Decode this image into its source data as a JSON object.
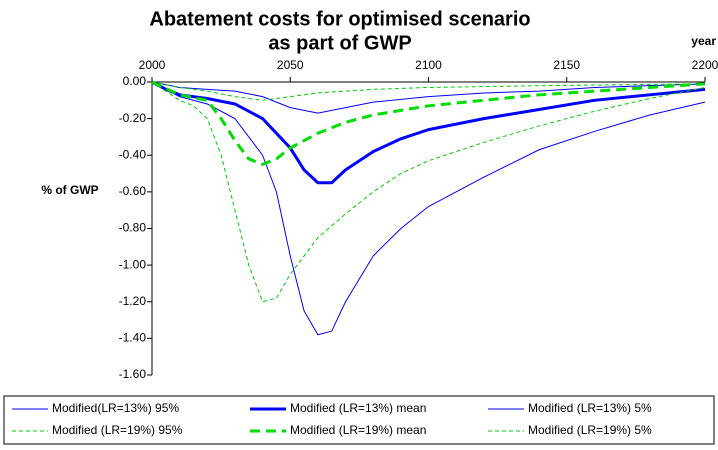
{
  "chart_data": {
    "type": "line",
    "title": [
      "Abatement costs for optimised scenario",
      "as part of GWP"
    ],
    "x_label": "year",
    "y_label": "% of GWP",
    "xlim": [
      2000,
      2200
    ],
    "xticks": [
      2000,
      2050,
      2100,
      2150,
      2200
    ],
    "ylim": [
      -1.6,
      0
    ],
    "yticks": [
      {
        "value": 0,
        "label": "0.00"
      },
      {
        "value": -0.2,
        "label": "-0.20"
      },
      {
        "value": -0.4,
        "label": "-0.40"
      },
      {
        "value": -0.6,
        "label": "-0.60"
      },
      {
        "value": -0.8,
        "label": "-0.80"
      },
      {
        "value": -1.0,
        "label": "-1.00"
      },
      {
        "value": -1.2,
        "label": "-1.20"
      },
      {
        "value": -1.4,
        "label": "-1.40"
      },
      {
        "value": -1.6,
        "label": "-1.60"
      }
    ],
    "series": [
      {
        "name": "Modified(LR=13%) 95%",
        "color": "#0000ff",
        "line_width": 1,
        "dashed": false,
        "x": [
          2000,
          2010,
          2020,
          2030,
          2040,
          2045,
          2050,
          2055,
          2060,
          2065,
          2070,
          2080,
          2090,
          2100,
          2120,
          2140,
          2160,
          2180,
          2200
        ],
        "values": [
          0,
          -0.08,
          -0.12,
          -0.2,
          -0.4,
          -0.6,
          -0.95,
          -1.25,
          -1.38,
          -1.36,
          -1.2,
          -0.95,
          -0.8,
          -0.68,
          -0.52,
          -0.37,
          -0.27,
          -0.18,
          -0.11
        ]
      },
      {
        "name": "Modified (LR=13%) mean",
        "color": "#0000ff",
        "line_width": 3,
        "dashed": false,
        "x": [
          2000,
          2005,
          2010,
          2020,
          2030,
          2040,
          2050,
          2055,
          2060,
          2065,
          2070,
          2080,
          2090,
          2100,
          2120,
          2140,
          2160,
          2180,
          2200
        ],
        "values": [
          0,
          -0.04,
          -0.07,
          -0.09,
          -0.12,
          -0.2,
          -0.36,
          -0.48,
          -0.55,
          -0.55,
          -0.48,
          -0.38,
          -0.31,
          -0.26,
          -0.2,
          -0.15,
          -0.1,
          -0.07,
          -0.04
        ]
      },
      {
        "name": "Modified (LR=13%) 5%",
        "color": "#0000ff",
        "line_width": 1,
        "dashed": false,
        "x": [
          2000,
          2010,
          2020,
          2030,
          2040,
          2050,
          2060,
          2070,
          2080,
          2100,
          2120,
          2140,
          2160,
          2180,
          2200
        ],
        "values": [
          0,
          -0.03,
          -0.04,
          -0.05,
          -0.08,
          -0.14,
          -0.17,
          -0.14,
          -0.11,
          -0.08,
          -0.06,
          -0.05,
          -0.03,
          -0.02,
          -0.01
        ]
      },
      {
        "name": "Modified (LR=19%) 95%",
        "color": "#00cc00",
        "line_width": 1,
        "dashed": true,
        "x": [
          2000,
          2010,
          2015,
          2020,
          2025,
          2030,
          2035,
          2040,
          2045,
          2050,
          2060,
          2070,
          2080,
          2090,
          2100,
          2120,
          2140,
          2160,
          2180,
          2200
        ],
        "values": [
          0,
          -0.1,
          -0.13,
          -0.2,
          -0.4,
          -0.7,
          -1.0,
          -1.2,
          -1.18,
          -1.05,
          -0.85,
          -0.72,
          -0.6,
          -0.5,
          -0.43,
          -0.33,
          -0.24,
          -0.16,
          -0.09,
          -0.03
        ]
      },
      {
        "name": "Modified (LR=19%) mean",
        "color": "#00dd00",
        "line_width": 3,
        "dashed": true,
        "x": [
          2000,
          2010,
          2020,
          2025,
          2030,
          2035,
          2040,
          2045,
          2050,
          2060,
          2070,
          2080,
          2100,
          2120,
          2140,
          2160,
          2180,
          2200
        ],
        "values": [
          0,
          -0.07,
          -0.1,
          -0.2,
          -0.32,
          -0.42,
          -0.45,
          -0.42,
          -0.36,
          -0.28,
          -0.22,
          -0.18,
          -0.13,
          -0.1,
          -0.07,
          -0.05,
          -0.03,
          -0.01
        ]
      },
      {
        "name": "Modified (LR=19%) 5%",
        "color": "#00cc00",
        "line_width": 1,
        "dashed": true,
        "x": [
          2000,
          2010,
          2020,
          2030,
          2040,
          2050,
          2060,
          2080,
          2100,
          2140,
          2200
        ],
        "values": [
          0,
          -0.03,
          -0.05,
          -0.08,
          -0.1,
          -0.08,
          -0.06,
          -0.04,
          -0.03,
          -0.02,
          -0.01
        ]
      }
    ]
  }
}
